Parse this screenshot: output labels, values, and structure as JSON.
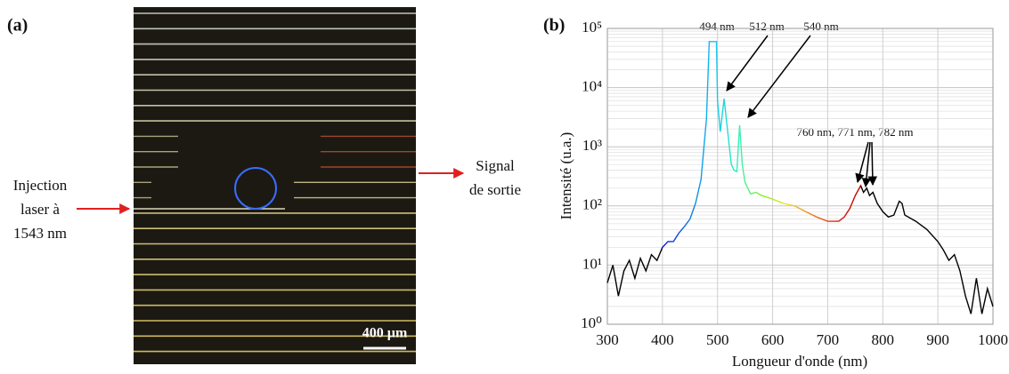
{
  "panel_a": {
    "label": "(a)",
    "input_label": [
      "Injection",
      "laser à",
      "1543 nm"
    ],
    "output_label": [
      "Signal",
      "de sortie"
    ],
    "scale_bar": "400 µm"
  },
  "chart_data": {
    "type": "line",
    "label": "(b)",
    "x_label": "Longueur d'onde (nm)",
    "y_label": "Intensité (u.a.)",
    "log_y": true,
    "grid": true,
    "xlim": [
      300,
      1000
    ],
    "ylim": [
      1,
      100000
    ],
    "xticks": [
      300,
      400,
      500,
      600,
      700,
      800,
      900,
      1000
    ],
    "yticks": [
      {
        "value": 1,
        "label": "10⁰"
      },
      {
        "value": 10,
        "label": "10¹"
      },
      {
        "value": 100,
        "label": "10²"
      },
      {
        "value": 1000,
        "label": "10³"
      },
      {
        "value": 10000,
        "label": "10⁴"
      },
      {
        "value": 100000,
        "label": "10⁵"
      }
    ],
    "annotations": [
      "494 nm",
      "512 nm",
      "540 nm",
      "760 nm, 771 nm, 782 nm"
    ],
    "series": [
      {
        "color": "#000000",
        "spectral_colors": [
          "#1010e0",
          "#1070e0",
          "#10c0f0",
          "#30f0c0",
          "#80f030",
          "#f0e020",
          "#f08020",
          "#e02010",
          "#c00000"
        ],
        "spectral_range": [
          400,
          760
        ],
        "x": [
          300,
          310,
          320,
          330,
          340,
          350,
          360,
          370,
          380,
          390,
          400,
          410,
          420,
          430,
          440,
          450,
          460,
          470,
          480,
          485,
          494,
          498,
          500,
          505,
          512,
          518,
          525,
          530,
          535,
          540,
          545,
          550,
          560,
          570,
          580,
          590,
          600,
          620,
          640,
          660,
          680,
          700,
          720,
          730,
          740,
          750,
          760,
          765,
          771,
          776,
          782,
          790,
          800,
          810,
          820,
          830,
          835,
          840,
          860,
          880,
          900,
          910,
          920,
          930,
          940,
          950,
          960,
          970,
          980,
          990,
          1000
        ],
        "values": [
          5,
          10,
          3,
          8,
          12,
          6,
          13,
          8,
          15,
          12,
          20,
          25,
          25,
          35,
          45,
          60,
          110,
          280,
          3000,
          60000,
          60000,
          60000,
          6000,
          1800,
          6500,
          2000,
          500,
          400,
          380,
          2300,
          500,
          250,
          160,
          170,
          150,
          140,
          130,
          110,
          100,
          80,
          65,
          55,
          55,
          65,
          90,
          150,
          220,
          170,
          200,
          150,
          170,
          110,
          80,
          65,
          70,
          120,
          110,
          70,
          55,
          40,
          25,
          18,
          12,
          15,
          8,
          3,
          1.5,
          6,
          1.5,
          4,
          2
        ]
      }
    ]
  }
}
